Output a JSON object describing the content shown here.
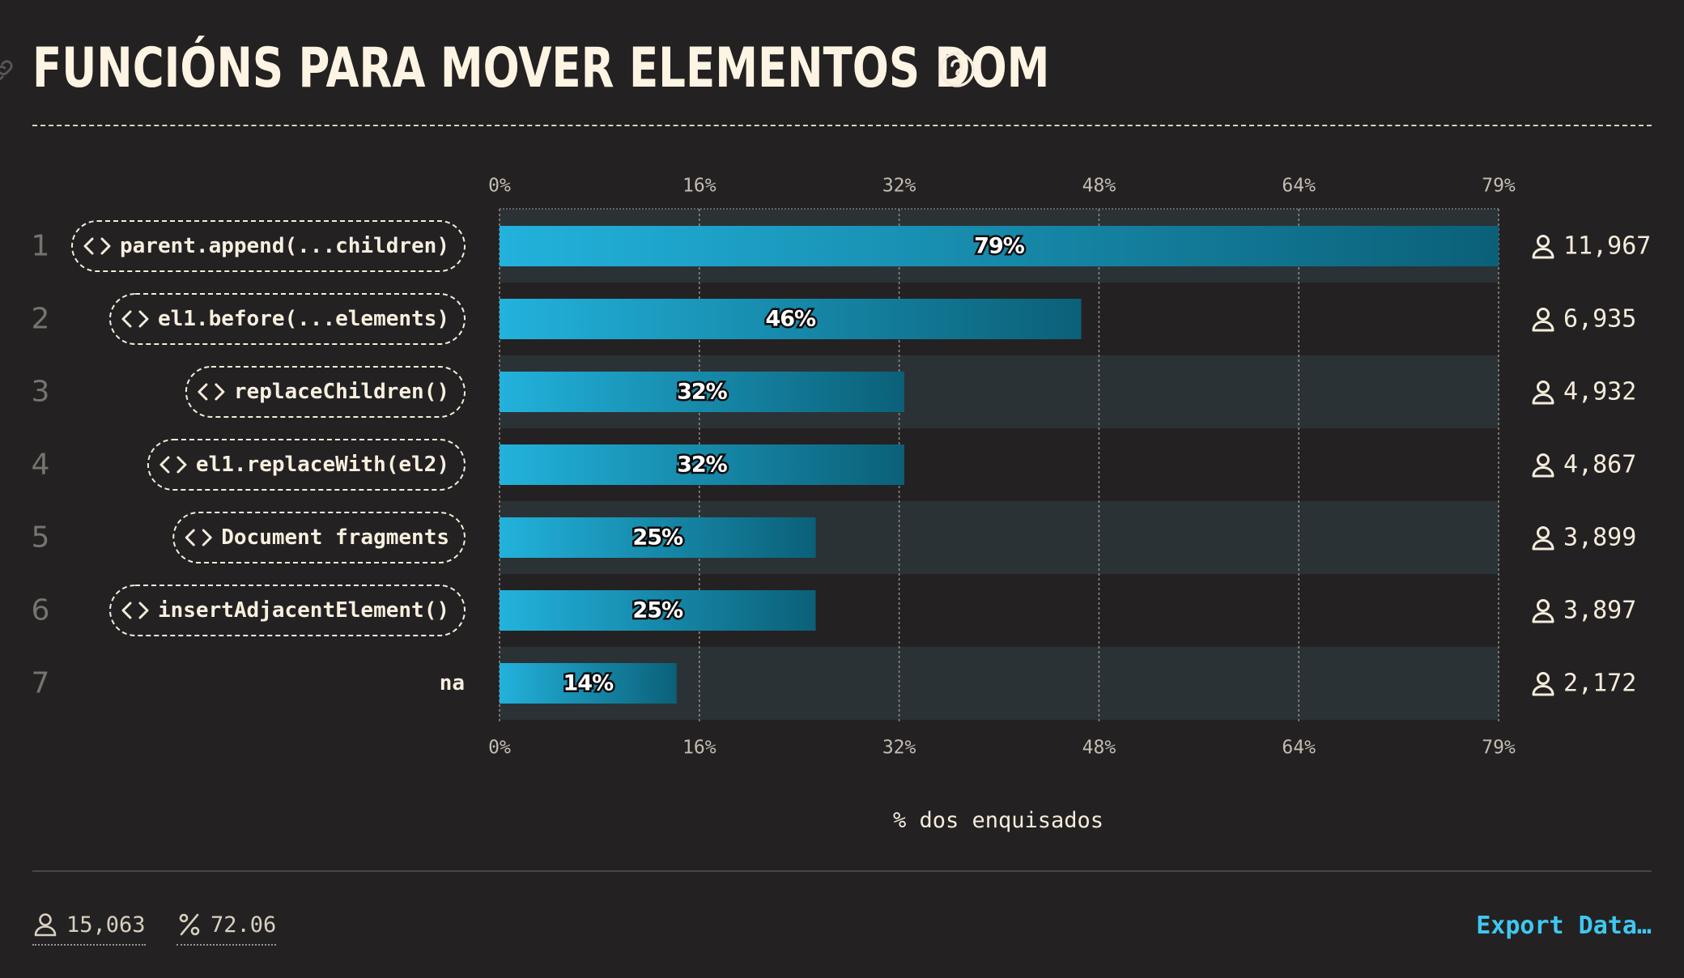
{
  "header": {
    "title": "FUNCIÓNS PARA MOVER ELEMENTOS DOM"
  },
  "colors": {
    "bar_light": "#22b2dc",
    "bar_dark": "#0b6078",
    "band": "#2b3236",
    "accent": "#3ec8f0"
  },
  "chart_data": {
    "type": "bar",
    "orientation": "horizontal",
    "xlabel": "% dos enquisados",
    "xlim": [
      0,
      79
    ],
    "ticks": [
      "0%",
      "16%",
      "32%",
      "48%",
      "64%",
      "79%"
    ],
    "grid": true,
    "categories": [
      "parent.append(...children)",
      "el1.before(...elements)",
      "replaceChildren()",
      "el1.replaceWith(el2)",
      "Document fragments",
      "insertAdjacentElement()",
      "na"
    ],
    "code_label": [
      true,
      true,
      true,
      true,
      true,
      true,
      false
    ],
    "ranks": [
      "1",
      "2",
      "3",
      "4",
      "5",
      "6",
      "7"
    ],
    "values": [
      79,
      46,
      32,
      32,
      25,
      25,
      14
    ],
    "value_labels": [
      "79%",
      "46%",
      "32%",
      "32%",
      "25%",
      "25%",
      "14%"
    ],
    "counts": [
      "11,967",
      "6,935",
      "4,932",
      "4,867",
      "3,899",
      "3,897",
      "2,172"
    ]
  },
  "footer": {
    "respondents": "15,063",
    "percentage": "72.06",
    "export_label": "Export Data…"
  }
}
